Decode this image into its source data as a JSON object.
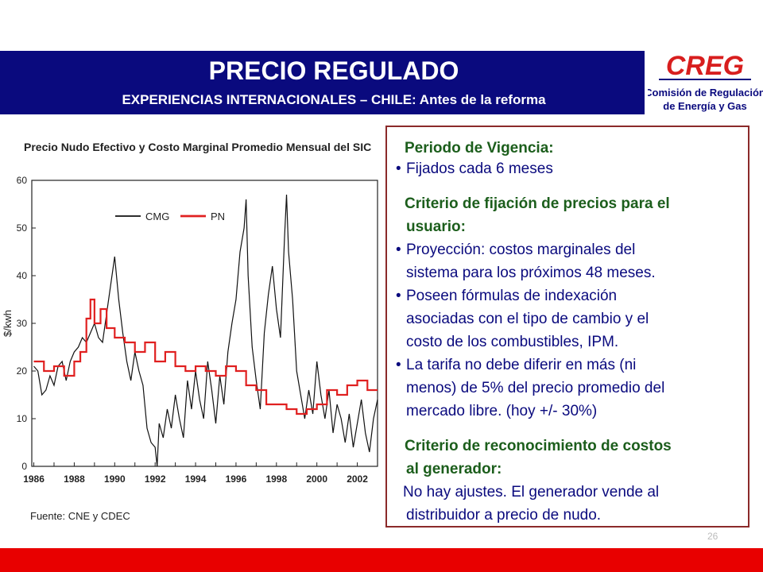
{
  "header": {
    "title": "PRECIO REGULADO",
    "subtitle": "EXPERIENCIAS INTERNACIONALES – CHILE: Antes de la reforma"
  },
  "logo": {
    "acronym": "CREG",
    "line1": "Comisión de Regulación",
    "line2": "de Energía y Gas"
  },
  "colors": {
    "header_bg": "#0a0a7e",
    "footer_bg": "#e80000",
    "box_border": "#8b2a2a",
    "heading_green": "#1c5e1c",
    "text_blue": "#0a0a7e",
    "cmg_line": "#111111",
    "pn_line": "#e02020"
  },
  "chart_data": {
    "type": "line",
    "title": "Precio Nudo Efectivo y Costo Marginal Promedio Mensual del SIC",
    "xlabel": "",
    "ylabel": "$/kwh",
    "xlim": [
      1985.9,
      2003.0
    ],
    "ylim": [
      0,
      60
    ],
    "xticks": [
      "1986",
      "1988",
      "1990",
      "1992",
      "1994",
      "1996",
      "1998",
      "2000",
      "2002"
    ],
    "yticks": [
      "0",
      "10",
      "20",
      "30",
      "40",
      "50",
      "60"
    ],
    "grid": false,
    "legend_position": "top-center",
    "source": "Fuente: CNE y CDEC",
    "series": [
      {
        "name": "CMG",
        "x": [
          1986.0,
          1986.2,
          1986.4,
          1986.6,
          1986.8,
          1987.0,
          1987.2,
          1987.4,
          1987.6,
          1987.8,
          1988.0,
          1988.2,
          1988.4,
          1988.6,
          1988.8,
          1989.0,
          1989.2,
          1989.4,
          1989.6,
          1989.8,
          1990.0,
          1990.2,
          1990.4,
          1990.6,
          1990.8,
          1991.0,
          1991.2,
          1991.4,
          1991.6,
          1991.8,
          1992.0,
          1992.1,
          1992.2,
          1992.4,
          1992.6,
          1992.8,
          1993.0,
          1993.2,
          1993.4,
          1993.6,
          1993.8,
          1994.0,
          1994.2,
          1994.4,
          1994.6,
          1994.8,
          1995.0,
          1995.2,
          1995.4,
          1995.6,
          1995.8,
          1996.0,
          1996.2,
          1996.4,
          1996.5,
          1996.6,
          1996.8,
          1997.0,
          1997.2,
          1997.4,
          1997.6,
          1997.8,
          1998.0,
          1998.2,
          1998.4,
          1998.5,
          1998.6,
          1998.8,
          1999.0,
          1999.2,
          1999.4,
          1999.6,
          1999.8,
          2000.0,
          2000.2,
          2000.4,
          2000.6,
          2000.8,
          2001.0,
          2001.2,
          2001.4,
          2001.6,
          2001.8,
          2002.0,
          2002.2,
          2002.4,
          2002.6,
          2002.8,
          2003.0
        ],
        "values": [
          21,
          20,
          15,
          16,
          19,
          17,
          21,
          22,
          18,
          22,
          24,
          25,
          27,
          26,
          28,
          30,
          27,
          26,
          32,
          38,
          44,
          35,
          28,
          22,
          18,
          24,
          20,
          17,
          8,
          5,
          4,
          0,
          9,
          6,
          12,
          8,
          15,
          10,
          6,
          18,
          12,
          20,
          14,
          10,
          22,
          16,
          9,
          19,
          13,
          24,
          30,
          35,
          45,
          50,
          56,
          40,
          25,
          18,
          12,
          28,
          36,
          42,
          33,
          27,
          48,
          57,
          45,
          35,
          20,
          15,
          10,
          16,
          11,
          22,
          15,
          10,
          16,
          7,
          13,
          10,
          5,
          11,
          4,
          9,
          14,
          7,
          3,
          10,
          14
        ]
      },
      {
        "name": "PN",
        "x": [
          1986.0,
          1986.5,
          1987.0,
          1987.5,
          1988.0,
          1988.3,
          1988.6,
          1988.8,
          1989.0,
          1989.3,
          1989.6,
          1990.0,
          1990.5,
          1991.0,
          1991.5,
          1992.0,
          1992.5,
          1993.0,
          1993.5,
          1994.0,
          1994.5,
          1995.0,
          1995.5,
          1996.0,
          1996.5,
          1997.0,
          1997.5,
          1998.0,
          1998.5,
          1999.0,
          1999.5,
          2000.0,
          2000.5,
          2001.0,
          2001.5,
          2002.0,
          2002.5,
          2003.0
        ],
        "values": [
          22,
          20,
          21,
          19,
          22,
          24,
          31,
          35,
          30,
          33,
          29,
          27,
          26,
          24,
          26,
          22,
          24,
          21,
          20,
          21,
          20,
          19,
          21,
          20,
          17,
          16,
          13,
          13,
          12,
          11,
          12,
          13,
          16,
          15,
          17,
          18,
          16,
          16
        ]
      }
    ]
  },
  "info": {
    "vigencia_heading": "Periodo de Vigencia:",
    "vigencia_bullet": "Fijados cada 6 meses",
    "fijacion_heading_1": "Criterio de fijación de precios para el",
    "fijacion_heading_2": "usuario:",
    "bullet1_l1": "Proyección: costos marginales del",
    "bullet1_l2": "sistema para los próximos 48 meses.",
    "bullet2_l1": "Poseen fórmulas de indexación",
    "bullet2_l2": "asociadas con el tipo de cambio y el",
    "bullet2_l3": "costo de los combustibles, IPM.",
    "bullet3_l1": "La tarifa no debe diferir en más (ni",
    "bullet3_l2": "menos) de 5% del precio promedio del",
    "bullet3_l3": "mercado libre. (hoy +/- 30%)",
    "reconocimiento_heading_1": "Criterio de reconocimiento de costos",
    "reconocimiento_heading_2": "al generador:",
    "reconocimiento_l1": "No hay ajustes. El generador vende al",
    "reconocimiento_l2": "distribuidor a precio de nudo.",
    "bullet_char": "•"
  },
  "page_number": "26"
}
